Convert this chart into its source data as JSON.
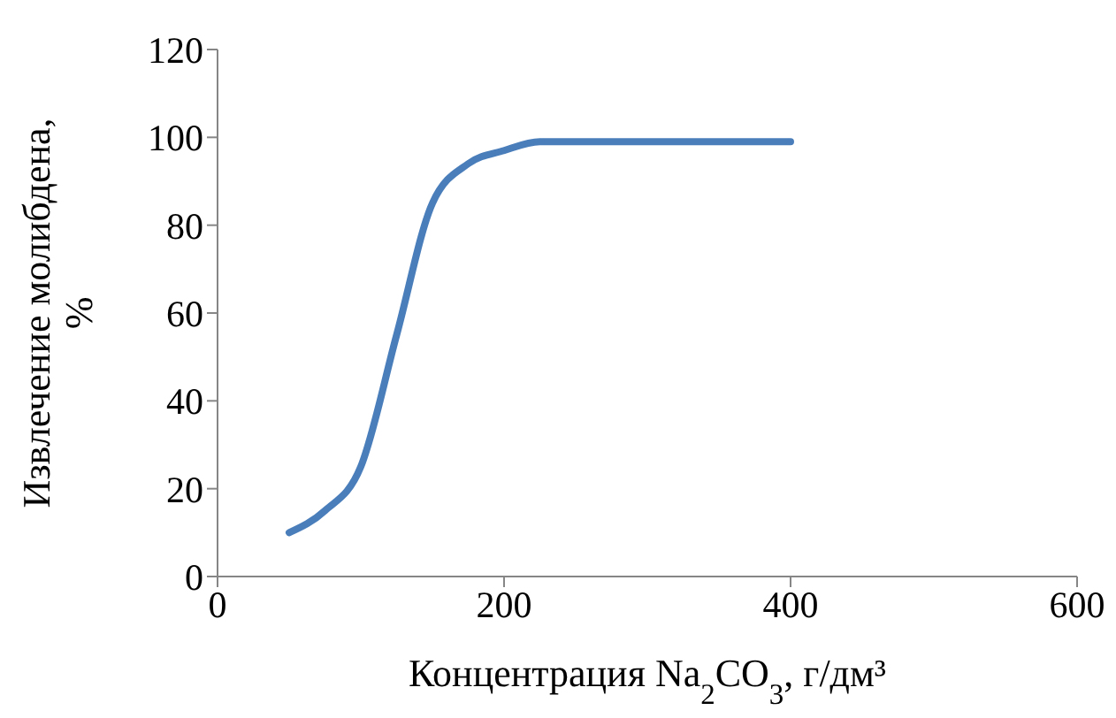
{
  "chart_data": {
    "type": "line",
    "xlabel": "Концентрация Na$_{2}$CO$_{3}$, г/дм³",
    "ylabel": "Извлечение молибдена, %",
    "x": [
      50,
      75,
      100,
      125,
      150,
      175,
      200,
      225,
      250,
      300,
      350,
      400
    ],
    "series": [
      {
        "color": "#4a7ebb",
        "values": [
          10,
          15,
          25,
          55,
          85,
          94,
          97,
          99,
          99,
          99,
          99,
          99
        ]
      }
    ],
    "xlim": [
      0,
      600
    ],
    "xticks": [
      0,
      200,
      400,
      600
    ],
    "ylim": [
      0,
      120
    ],
    "yticks": [
      0,
      20,
      40,
      60,
      80,
      100,
      120
    ],
    "grid": false,
    "legend": false,
    "marker": "none",
    "line_style": "solid"
  }
}
